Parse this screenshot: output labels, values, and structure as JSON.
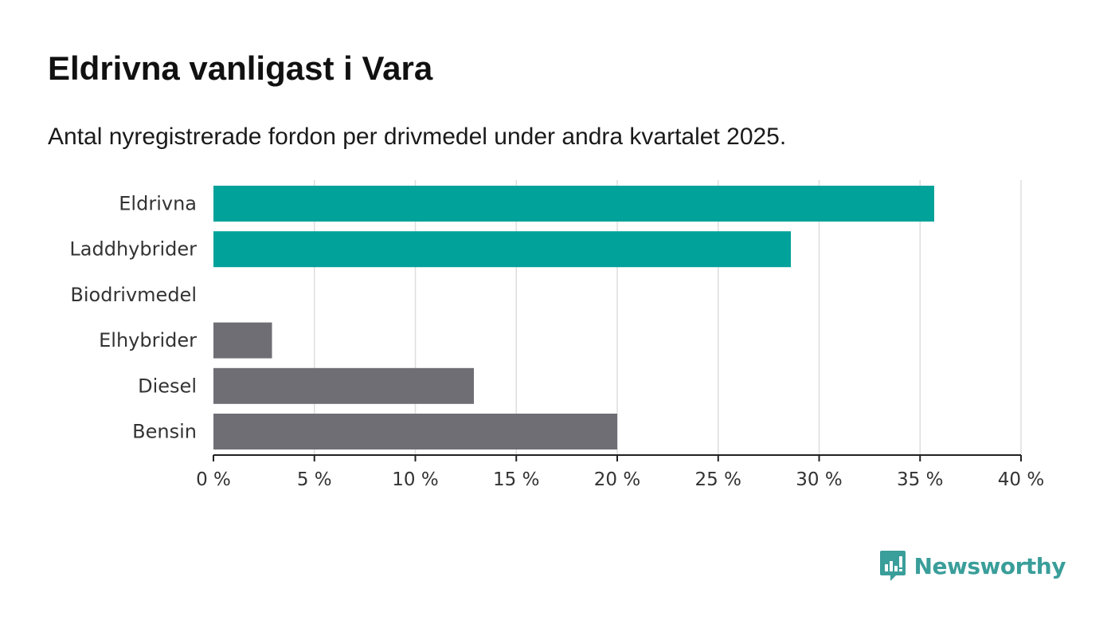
{
  "title": "Eldrivna vanligast i Vara",
  "subtitle": "Antal nyregistrerade fordon per drivmedel under andra kvartalet 2025.",
  "brand": {
    "name": "Newsworthy",
    "logo_icon": "bar-chart-speech-bubble-icon",
    "color": "#3a9e9a"
  },
  "chart_data": {
    "type": "bar",
    "orientation": "horizontal",
    "categories": [
      "Eldrivna",
      "Laddhybrider",
      "Biodrivmedel",
      "Elhybrider",
      "Diesel",
      "Bensin"
    ],
    "values": [
      35.7,
      28.6,
      0,
      2.9,
      12.9,
      20.0
    ],
    "colors": [
      "#00a29a",
      "#00a29a",
      "#00a29a",
      "#6f6e74",
      "#6f6e74",
      "#6f6e74"
    ],
    "xlim": [
      0,
      40
    ],
    "xticks": [
      0,
      5,
      10,
      15,
      20,
      25,
      30,
      35,
      40
    ],
    "xtick_labels": [
      "0 %",
      "5 %",
      "10 %",
      "15 %",
      "20 %",
      "25 %",
      "30 %",
      "35 %",
      "40 %"
    ],
    "grid": true,
    "xlabel": "",
    "ylabel": ""
  }
}
